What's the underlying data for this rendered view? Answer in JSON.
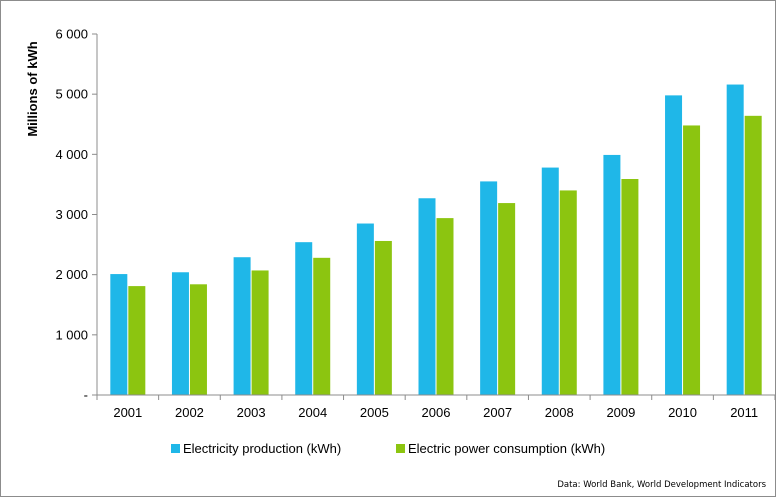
{
  "chart_data": {
    "type": "bar",
    "title": "",
    "xlabel": "",
    "ylabel": "Millions of kWh",
    "ylim": [
      0,
      6000
    ],
    "yticks": [
      {
        "value": 0,
        "label": "-"
      },
      {
        "value": 1000,
        "label": "1 000"
      },
      {
        "value": 2000,
        "label": "2 000"
      },
      {
        "value": 3000,
        "label": "3 000"
      },
      {
        "value": 4000,
        "label": "4 000"
      },
      {
        "value": 5000,
        "label": "5 000"
      },
      {
        "value": 6000,
        "label": "6 000"
      }
    ],
    "grid": false,
    "legend_position": "bottom",
    "categories": [
      "2001",
      "2002",
      "2003",
      "2004",
      "2005",
      "2006",
      "2007",
      "2008",
      "2009",
      "2010",
      "2011"
    ],
    "series": [
      {
        "name": "Electricity production (kWh)",
        "color": "#1fb7e8",
        "values": [
          2010,
          2040,
          2290,
          2540,
          2850,
          3270,
          3550,
          3780,
          3990,
          4980,
          5160
        ]
      },
      {
        "name": "Electric power consumption (kWh)",
        "color": "#8cc510",
        "values": [
          1810,
          1840,
          2070,
          2280,
          2560,
          2940,
          3190,
          3400,
          3590,
          4480,
          4640
        ]
      }
    ],
    "source_note": "Data: World Bank, World Development Indicators"
  }
}
